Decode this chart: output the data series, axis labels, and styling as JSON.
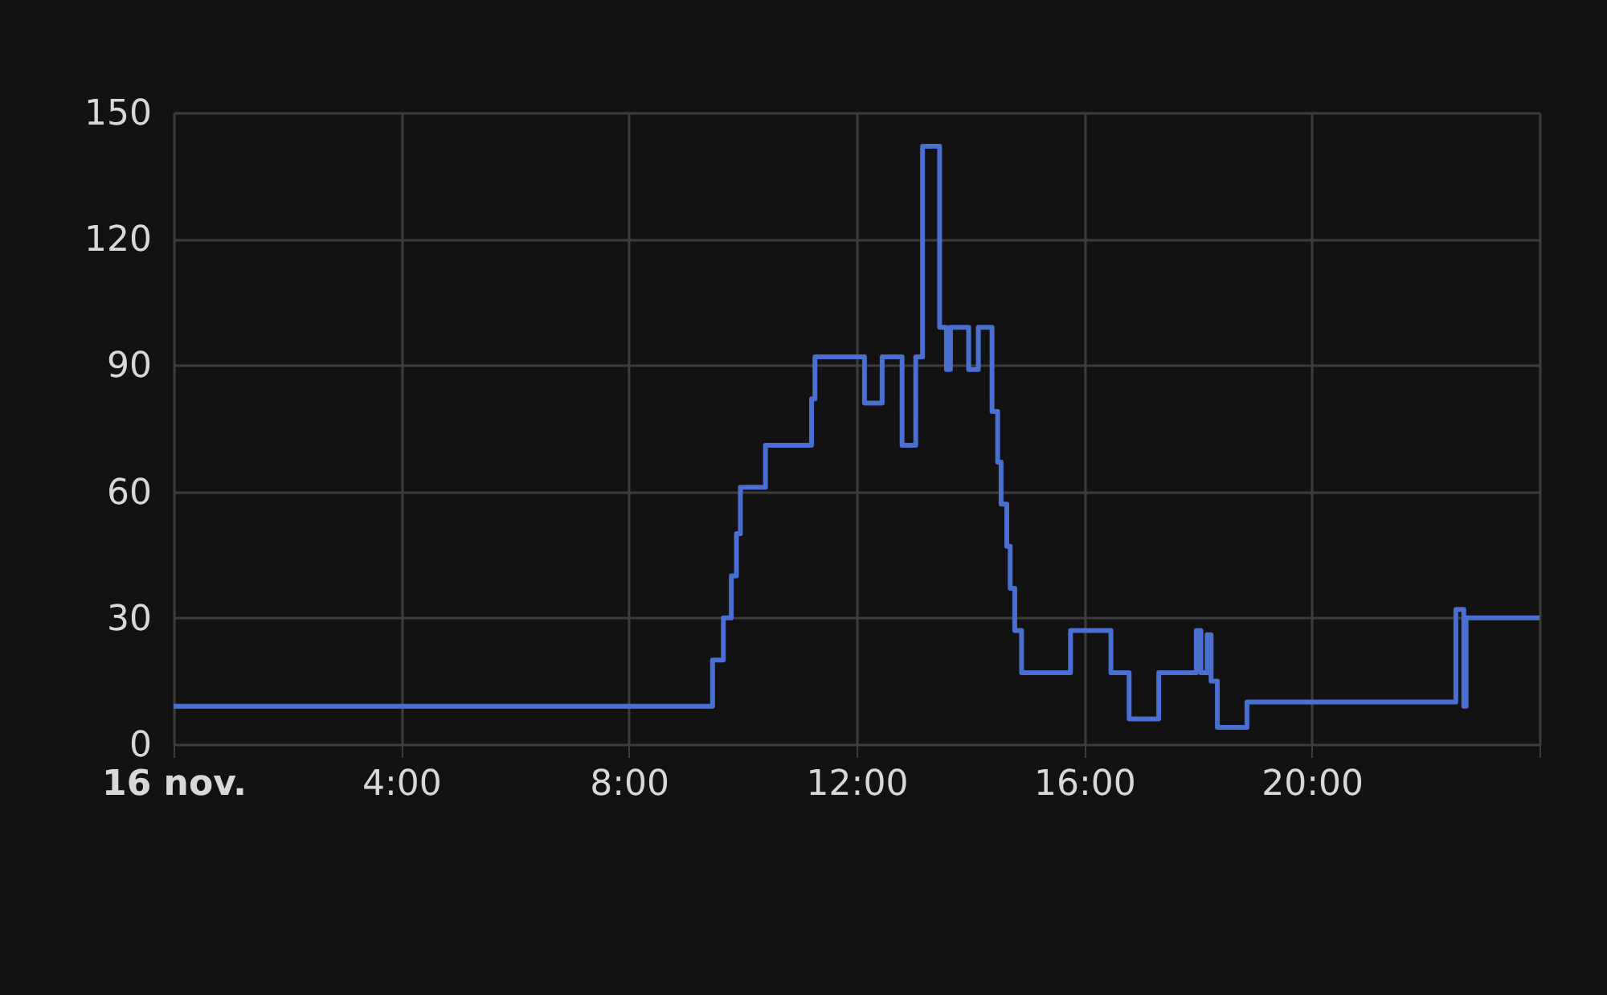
{
  "chart_data": {
    "type": "step",
    "x": [
      0,
      9.47,
      9.66,
      9.8,
      9.89,
      9.96,
      10.4,
      11.21,
      11.27,
      12.14,
      12.45,
      12.8,
      13.04,
      13.16,
      13.46,
      13.58,
      13.65,
      13.97,
      14.14,
      14.38,
      14.48,
      14.54,
      14.64,
      14.7,
      14.78,
      14.9,
      15.76,
      16.47,
      16.79,
      17.31,
      17.97,
      18.05,
      18.16,
      18.23,
      18.34,
      18.86,
      22.53,
      22.67,
      22.71,
      24
    ],
    "series": [
      {
        "color": "#4a6fd0",
        "values": [
          9,
          20,
          30,
          40,
          50,
          61,
          71,
          82,
          92,
          81,
          92,
          71,
          92,
          142,
          99,
          89,
          99,
          89,
          99,
          79,
          67,
          57,
          47,
          37,
          27,
          17,
          27,
          17,
          6,
          17,
          27,
          17,
          26,
          15,
          4,
          10,
          32,
          9,
          30,
          30
        ]
      }
    ],
    "xlim": [
      0,
      24
    ],
    "xticks": [
      {
        "value": 0,
        "label": "16 nov."
      },
      {
        "value": 4,
        "label": "4:00"
      },
      {
        "value": 8,
        "label": "8:00"
      },
      {
        "value": 12,
        "label": "12:00"
      },
      {
        "value": 16,
        "label": "16:00"
      },
      {
        "value": 20,
        "label": "20:00"
      },
      {
        "value": 24,
        "label": null
      }
    ],
    "ylim": [
      0,
      150
    ],
    "yticks": [
      0,
      30,
      60,
      90,
      120,
      150
    ],
    "grid": true,
    "marker": "none",
    "line_style": "solid"
  }
}
